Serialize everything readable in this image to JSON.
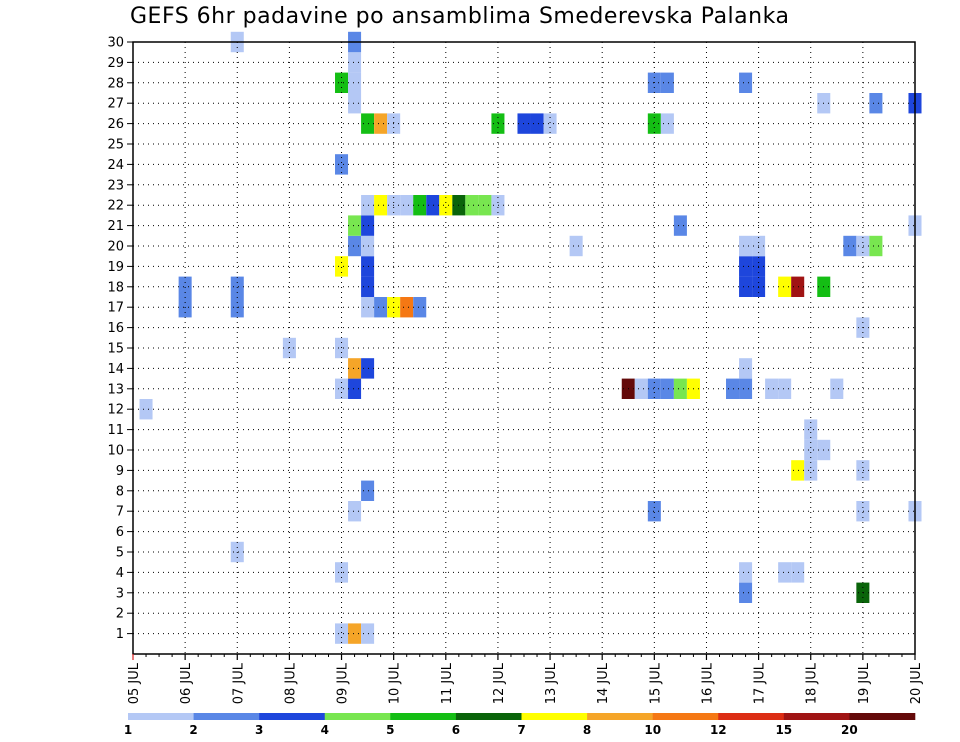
{
  "chart_data": {
    "type": "heatmap",
    "title": "GEFS 6hr padavine po ansamblima Smederevska Palanka",
    "x_tick_labels": [
      "05 JUL",
      "06 JUL",
      "07 JUL",
      "08 JUL",
      "09 JUL",
      "10 JUL",
      "11 JUL",
      "12 JUL",
      "13 JUL",
      "14 JUL",
      "15 JUL",
      "16 JUL",
      "17 JUL",
      "18 JUL",
      "19 JUL",
      "20 JUL"
    ],
    "y_tick_labels": [
      "1",
      "2",
      "3",
      "4",
      "5",
      "6",
      "7",
      "8",
      "9",
      "10",
      "11",
      "12",
      "13",
      "14",
      "15",
      "16",
      "17",
      "18",
      "19",
      "20",
      "21",
      "22",
      "23",
      "24",
      "25",
      "26",
      "27",
      "28",
      "29",
      "30"
    ],
    "x_range_days": [
      0,
      15
    ],
    "y_range_members": [
      0,
      30
    ],
    "grid": true,
    "colorbar": {
      "position": "bottom",
      "labels": [
        "1",
        "2",
        "3",
        "4",
        "5",
        "6",
        "7",
        "8",
        "10",
        "12",
        "15",
        "20"
      ],
      "colors": [
        "#b4c8f5",
        "#5a87e6",
        "#1e46dc",
        "#78e650",
        "#14be14",
        "#0a640a",
        "#ffff00",
        "#f5a528",
        "#f57814",
        "#dc2d14",
        "#a01414",
        "#640a0a"
      ]
    },
    "cells": [
      {
        "x": 4.0,
        "y": 1,
        "v": 1
      },
      {
        "x": 4.25,
        "y": 1,
        "v": 8
      },
      {
        "x": 4.5,
        "y": 1,
        "v": 1
      },
      {
        "x": 11.75,
        "y": 3,
        "v": 2
      },
      {
        "x": 14.0,
        "y": 3,
        "v": 6
      },
      {
        "x": 4.0,
        "y": 4,
        "v": 1
      },
      {
        "x": 11.75,
        "y": 4,
        "v": 1
      },
      {
        "x": 12.5,
        "y": 4,
        "v": 1
      },
      {
        "x": 12.75,
        "y": 4,
        "v": 1
      },
      {
        "x": 2.0,
        "y": 5,
        "v": 1
      },
      {
        "x": 4.25,
        "y": 7,
        "v": 1
      },
      {
        "x": 10.0,
        "y": 7,
        "v": 2
      },
      {
        "x": 14.0,
        "y": 7,
        "v": 1
      },
      {
        "x": 15.0,
        "y": 7,
        "v": 1
      },
      {
        "x": 4.5,
        "y": 8,
        "v": 2
      },
      {
        "x": 12.75,
        "y": 9,
        "v": 7
      },
      {
        "x": 13.0,
        "y": 9,
        "v": 1
      },
      {
        "x": 14.0,
        "y": 9,
        "v": 1
      },
      {
        "x": 13.0,
        "y": 10,
        "v": 1
      },
      {
        "x": 13.25,
        "y": 10,
        "v": 1
      },
      {
        "x": 13.0,
        "y": 11,
        "v": 1
      },
      {
        "x": 0.25,
        "y": 12,
        "v": 1
      },
      {
        "x": 4.0,
        "y": 13,
        "v": 1
      },
      {
        "x": 4.25,
        "y": 13,
        "v": 3
      },
      {
        "x": 9.5,
        "y": 13,
        "v": 20
      },
      {
        "x": 9.75,
        "y": 13,
        "v": 1
      },
      {
        "x": 10.0,
        "y": 13,
        "v": 2
      },
      {
        "x": 10.25,
        "y": 13,
        "v": 2
      },
      {
        "x": 10.5,
        "y": 13,
        "v": 4
      },
      {
        "x": 10.75,
        "y": 13,
        "v": 7
      },
      {
        "x": 11.5,
        "y": 13,
        "v": 2
      },
      {
        "x": 11.75,
        "y": 13,
        "v": 2
      },
      {
        "x": 12.25,
        "y": 13,
        "v": 1
      },
      {
        "x": 12.5,
        "y": 13,
        "v": 1
      },
      {
        "x": 13.5,
        "y": 13,
        "v": 1
      },
      {
        "x": 4.25,
        "y": 14,
        "v": 8
      },
      {
        "x": 4.5,
        "y": 14,
        "v": 3
      },
      {
        "x": 11.75,
        "y": 14,
        "v": 1
      },
      {
        "x": 3.0,
        "y": 15,
        "v": 1
      },
      {
        "x": 4.0,
        "y": 15,
        "v": 1
      },
      {
        "x": 14.0,
        "y": 16,
        "v": 1
      },
      {
        "x": 1.0,
        "y": 17,
        "v": 2
      },
      {
        "x": 2.0,
        "y": 17,
        "v": 2
      },
      {
        "x": 4.5,
        "y": 17,
        "v": 1
      },
      {
        "x": 4.75,
        "y": 17,
        "v": 2
      },
      {
        "x": 5.0,
        "y": 17,
        "v": 7
      },
      {
        "x": 5.25,
        "y": 17,
        "v": 10
      },
      {
        "x": 5.5,
        "y": 17,
        "v": 2
      },
      {
        "x": 1.0,
        "y": 18,
        "v": 2
      },
      {
        "x": 2.0,
        "y": 18,
        "v": 2
      },
      {
        "x": 4.5,
        "y": 18,
        "v": 3
      },
      {
        "x": 11.75,
        "y": 18,
        "v": 3
      },
      {
        "x": 12.0,
        "y": 18,
        "v": 3
      },
      {
        "x": 12.5,
        "y": 18,
        "v": 7
      },
      {
        "x": 12.75,
        "y": 18,
        "v": 15
      },
      {
        "x": 13.25,
        "y": 18,
        "v": 5
      },
      {
        "x": 4.0,
        "y": 19,
        "v": 7
      },
      {
        "x": 4.5,
        "y": 19,
        "v": 3
      },
      {
        "x": 11.75,
        "y": 19,
        "v": 3
      },
      {
        "x": 12.0,
        "y": 19,
        "v": 3
      },
      {
        "x": 4.25,
        "y": 20,
        "v": 2
      },
      {
        "x": 4.5,
        "y": 20,
        "v": 1
      },
      {
        "x": 8.5,
        "y": 20,
        "v": 1
      },
      {
        "x": 11.75,
        "y": 20,
        "v": 1
      },
      {
        "x": 12.0,
        "y": 20,
        "v": 1
      },
      {
        "x": 13.75,
        "y": 20,
        "v": 2
      },
      {
        "x": 14.0,
        "y": 20,
        "v": 1
      },
      {
        "x": 14.25,
        "y": 20,
        "v": 4
      },
      {
        "x": 4.25,
        "y": 21,
        "v": 4
      },
      {
        "x": 4.5,
        "y": 21,
        "v": 3
      },
      {
        "x": 10.5,
        "y": 21,
        "v": 2
      },
      {
        "x": 15.0,
        "y": 21,
        "v": 1
      },
      {
        "x": 4.5,
        "y": 22,
        "v": 1
      },
      {
        "x": 4.75,
        "y": 22,
        "v": 7
      },
      {
        "x": 5.0,
        "y": 22,
        "v": 1
      },
      {
        "x": 5.25,
        "y": 22,
        "v": 1
      },
      {
        "x": 5.5,
        "y": 22,
        "v": 5
      },
      {
        "x": 5.75,
        "y": 22,
        "v": 3
      },
      {
        "x": 6.0,
        "y": 22,
        "v": 7
      },
      {
        "x": 6.25,
        "y": 22,
        "v": 6
      },
      {
        "x": 6.5,
        "y": 22,
        "v": 4
      },
      {
        "x": 6.75,
        "y": 22,
        "v": 4
      },
      {
        "x": 7.0,
        "y": 22,
        "v": 1
      },
      {
        "x": 4.0,
        "y": 24,
        "v": 2
      },
      {
        "x": 4.5,
        "y": 26,
        "v": 5
      },
      {
        "x": 4.75,
        "y": 26,
        "v": 8
      },
      {
        "x": 5.0,
        "y": 26,
        "v": 1
      },
      {
        "x": 7.0,
        "y": 26,
        "v": 5
      },
      {
        "x": 7.5,
        "y": 26,
        "v": 3
      },
      {
        "x": 7.75,
        "y": 26,
        "v": 3
      },
      {
        "x": 8.0,
        "y": 26,
        "v": 1
      },
      {
        "x": 10.0,
        "y": 26,
        "v": 5
      },
      {
        "x": 10.25,
        "y": 26,
        "v": 1
      },
      {
        "x": 4.25,
        "y": 27,
        "v": 1
      },
      {
        "x": 13.25,
        "y": 27,
        "v": 1
      },
      {
        "x": 14.25,
        "y": 27,
        "v": 2
      },
      {
        "x": 15.0,
        "y": 27,
        "v": 3
      },
      {
        "x": 4.0,
        "y": 28,
        "v": 5
      },
      {
        "x": 4.25,
        "y": 28,
        "v": 1
      },
      {
        "x": 10.0,
        "y": 28,
        "v": 2
      },
      {
        "x": 10.25,
        "y": 28,
        "v": 2
      },
      {
        "x": 11.75,
        "y": 28,
        "v": 2
      },
      {
        "x": 4.25,
        "y": 29,
        "v": 1
      },
      {
        "x": 2.0,
        "y": 30,
        "v": 1
      },
      {
        "x": 4.25,
        "y": 30,
        "v": 2
      }
    ]
  }
}
